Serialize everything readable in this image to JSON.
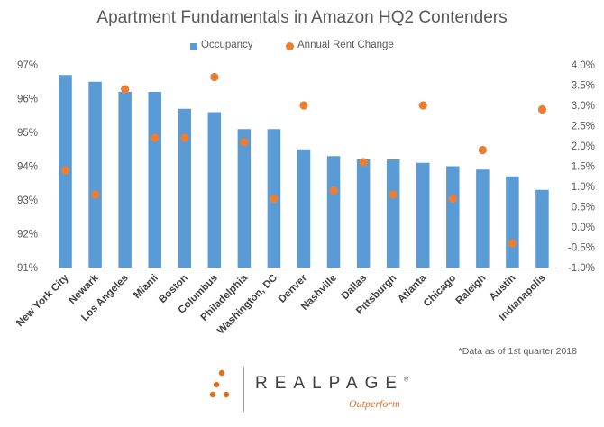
{
  "chart_data": {
    "type": "bar",
    "title": "Apartment Fundamentals in Amazon HQ2 Contenders",
    "categories": [
      "New York City",
      "Newark",
      "Los Angeles",
      "Miami",
      "Boston",
      "Columbus",
      "Philadelphia",
      "Washington, DC",
      "Denver",
      "Nashville",
      "Dallas",
      "Pittsburgh",
      "Atlanta",
      "Chicago",
      "Raleigh",
      "Austin",
      "Indianapolis"
    ],
    "series": [
      {
        "name": "Occupancy",
        "type": "bar",
        "axis": "left",
        "color": "#5B9BD5",
        "values": [
          96.7,
          96.5,
          96.2,
          96.2,
          95.7,
          95.6,
          95.1,
          95.1,
          94.5,
          94.3,
          94.2,
          94.2,
          94.1,
          94.0,
          93.9,
          93.7,
          93.3
        ]
      },
      {
        "name": "Annual Rent Change",
        "type": "scatter",
        "axis": "right",
        "color": "#ED7D31",
        "values": [
          1.4,
          0.8,
          3.4,
          2.2,
          2.2,
          3.7,
          2.1,
          0.7,
          3.0,
          0.9,
          1.6,
          0.8,
          3.0,
          0.7,
          1.9,
          -0.4,
          2.9
        ]
      }
    ],
    "ylim_left": [
      91,
      97
    ],
    "ylim_right": [
      -1.0,
      4.0
    ],
    "left_ticks": [
      "91%",
      "92%",
      "93%",
      "94%",
      "95%",
      "96%",
      "97%"
    ],
    "right_ticks": [
      "-1.0%",
      "-0.5%",
      "0.0%",
      "0.5%",
      "1.0%",
      "1.5%",
      "2.0%",
      "2.5%",
      "3.0%",
      "3.5%",
      "4.0%"
    ],
    "legend_position": "top",
    "grid": false
  },
  "footnote": "*Data as of 1st quarter 2018",
  "logo": {
    "wordmark": "REALPAGE",
    "trademark": "®",
    "tagline": "Outperform",
    "colors": {
      "dots": "#E07020",
      "wordmark": "#404040",
      "tagline": "#E07020"
    }
  }
}
